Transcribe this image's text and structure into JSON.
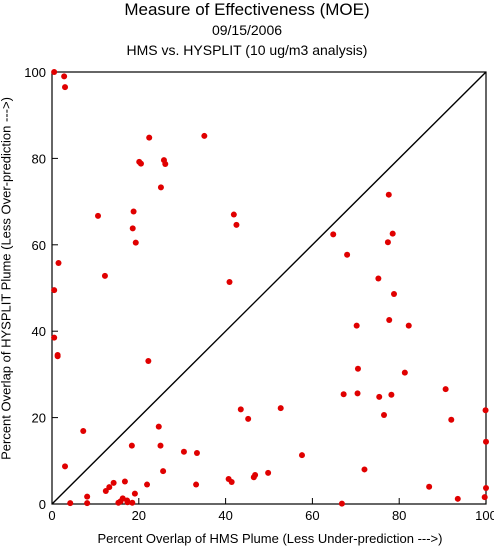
{
  "header": {
    "title": "Measure of Effectiveness (MOE)",
    "date": "09/15/2006",
    "subtitle": "HMS vs. HYSPLIT  (10 ug/m3 analysis)"
  },
  "chart_data": {
    "type": "scatter",
    "xlabel": "Percent Overlap of HMS Plume (Less Under-prediction --->)",
    "ylabel": "Percent Overlap of HYSPLIT Plume (Less Over-prediction --->)",
    "xlim": [
      0,
      100
    ],
    "ylim": [
      0,
      100
    ],
    "xticks": [
      "0",
      "20",
      "40",
      "60",
      "80",
      "100"
    ],
    "yticks": [
      "0",
      "20",
      "40",
      "60",
      "80",
      "100"
    ],
    "reference_line": "y = x",
    "point_color": "#e00000",
    "points": [
      [
        0.5,
        100
      ],
      [
        2.8,
        99
      ],
      [
        3,
        96.5
      ],
      [
        0.5,
        49.5
      ],
      [
        0.5,
        38.5
      ],
      [
        1.3,
        34.5
      ],
      [
        1.3,
        34.2
      ],
      [
        1.5,
        55.8
      ],
      [
        3,
        8.7
      ],
      [
        4.2,
        0.2
      ],
      [
        7.2,
        16.9
      ],
      [
        8.1,
        0.2
      ],
      [
        8.1,
        1.7
      ],
      [
        10.6,
        66.7
      ],
      [
        12.2,
        52.8
      ],
      [
        12.4,
        3
      ],
      [
        13.2,
        3.9
      ],
      [
        14.2,
        4.9
      ],
      [
        15.3,
        0.3
      ],
      [
        15.8,
        0.6
      ],
      [
        16.3,
        1.3
      ],
      [
        16.8,
        5.2
      ],
      [
        17.3,
        0.8
      ],
      [
        17.4,
        0.4
      ],
      [
        18.4,
        13.5
      ],
      [
        18.5,
        0.3
      ],
      [
        18.6,
        63.8
      ],
      [
        18.8,
        67.7
      ],
      [
        19.1,
        2.4
      ],
      [
        19.3,
        60.5
      ],
      [
        20.1,
        79.2
      ],
      [
        20.5,
        78.8
      ],
      [
        21.9,
        4.5
      ],
      [
        22.2,
        33.1
      ],
      [
        22.4,
        84.8
      ],
      [
        24.6,
        17.9
      ],
      [
        25,
        13.5
      ],
      [
        25.1,
        73.3
      ],
      [
        25.6,
        7.6
      ],
      [
        25.8,
        79.6
      ],
      [
        26.1,
        78.7
      ],
      [
        30.4,
        12.1
      ],
      [
        33.2,
        4.5
      ],
      [
        33.4,
        11.8
      ],
      [
        35.1,
        85.2
      ],
      [
        40.7,
        5.8
      ],
      [
        40.9,
        51.4
      ],
      [
        41.4,
        5.1
      ],
      [
        41.9,
        67
      ],
      [
        42.5,
        64.6
      ],
      [
        43.5,
        21.9
      ],
      [
        45.2,
        19.7
      ],
      [
        46.5,
        6.2
      ],
      [
        46.8,
        6.7
      ],
      [
        49.8,
        7.2
      ],
      [
        52.7,
        22.2
      ],
      [
        57.6,
        11.3
      ],
      [
        64.8,
        62.4
      ],
      [
        66.8,
        0.1
      ],
      [
        67.2,
        25.4
      ],
      [
        68,
        57.7
      ],
      [
        70.2,
        41.3
      ],
      [
        70.4,
        25.6
      ],
      [
        70.5,
        31.3
      ],
      [
        72,
        8
      ],
      [
        75.2,
        52.2
      ],
      [
        75.4,
        24.8
      ],
      [
        76.5,
        20.6
      ],
      [
        77.4,
        60.6
      ],
      [
        77.6,
        71.6
      ],
      [
        77.7,
        42.6
      ],
      [
        78.2,
        25.3
      ],
      [
        78.5,
        62.6
      ],
      [
        78.8,
        48.6
      ],
      [
        81.3,
        30.4
      ],
      [
        82.2,
        41.3
      ],
      [
        86.9,
        4
      ],
      [
        90.7,
        26.6
      ],
      [
        92,
        19.5
      ],
      [
        93.5,
        1.2
      ],
      [
        99.7,
        1.6
      ],
      [
        99.9,
        21.7
      ],
      [
        100,
        3.7
      ],
      [
        100,
        14.4
      ]
    ]
  }
}
